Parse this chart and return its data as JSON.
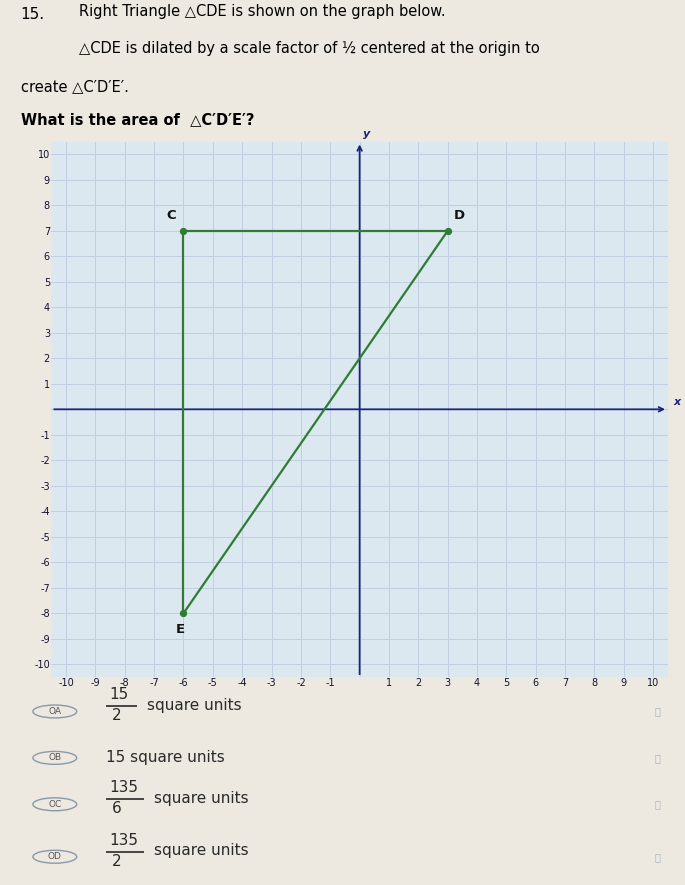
{
  "title_number": "15.",
  "title_line1": "Right Triangle △CDE is shown on the graph below.",
  "title_line2": "△CDE is dilated by a scale factor of ½ centered at the origin to",
  "title_line3": "create △C′D′E′.",
  "title_line4": "What is the area of  △C′D′E′?",
  "triangle_C": [
    -6,
    7
  ],
  "triangle_D": [
    3,
    7
  ],
  "triangle_E": [
    -6,
    -8
  ],
  "triangle_color": "#2e7d32",
  "triangle_linewidth": 1.6,
  "axis_color": "#1a237e",
  "grid_color": "#a8b8cc",
  "grid_color2": "#c8d8e8",
  "background_color": "#dce8f0",
  "xlim": [
    -10.5,
    10.5
  ],
  "ylim": [
    -10.5,
    10.5
  ],
  "xticks": [
    -10,
    -9,
    -8,
    -7,
    -6,
    -5,
    -4,
    -3,
    -2,
    -1,
    1,
    2,
    3,
    4,
    5,
    6,
    7,
    8,
    9,
    10
  ],
  "yticks": [
    -10,
    -9,
    -8,
    -7,
    -6,
    -5,
    -4,
    -3,
    -2,
    -1,
    1,
    2,
    3,
    4,
    5,
    6,
    7,
    8,
    9,
    10
  ],
  "all_xticks": [
    -10,
    -9,
    -8,
    -7,
    -6,
    -5,
    -4,
    -3,
    -2,
    -1,
    0,
    1,
    2,
    3,
    4,
    5,
    6,
    7,
    8,
    9,
    10
  ],
  "all_yticks": [
    -10,
    -9,
    -8,
    -7,
    -6,
    -5,
    -4,
    -3,
    -2,
    -1,
    0,
    1,
    2,
    3,
    4,
    5,
    6,
    7,
    8,
    9,
    10
  ],
  "label_C": "C",
  "label_D": "D",
  "label_E": "E",
  "options": [
    {
      "label": "A",
      "numerator": "15",
      "denom": "2",
      "suffix": "square units",
      "plain": null
    },
    {
      "label": "B",
      "numerator": null,
      "denom": null,
      "suffix": null,
      "plain": "15 square units"
    },
    {
      "label": "C",
      "numerator": "135",
      "denom": "6",
      "suffix": "square units",
      "plain": null
    },
    {
      "label": "D",
      "numerator": "135",
      "denom": "2",
      "suffix": "square units",
      "plain": null
    }
  ],
  "option_circle_color": "#8899aa",
  "option_text_color": "#2a2a2a",
  "option_label_color": "#555555",
  "page_bg": "#ede8e0",
  "text_bg": "#f0ece4"
}
